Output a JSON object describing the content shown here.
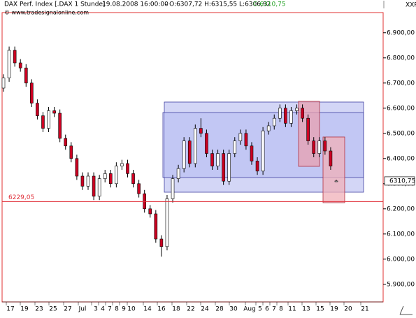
{
  "chart_data": {
    "type": "candlestick",
    "header": {
      "instrument": "DAX Perf. Index [.DAX  1 Stunde]",
      "timestamp": "19.08.2008 16:00:00",
      "ohlc": "- O:6307,72 H:6315,55 L:6306,92",
      "close": "C:6310,75",
      "copyright": "© www.tradesignalonline.com",
      "corner": "XXP"
    },
    "x_labels": [
      "17",
      "19",
      "23",
      "25",
      "27",
      "Jul",
      "3",
      "4",
      "7",
      "8",
      "9",
      "10",
      "14",
      "16",
      "18",
      "22",
      "24",
      "28",
      "30",
      "Aug",
      "5",
      "6",
      "7",
      "8",
      "11",
      "13",
      "15",
      "19",
      "20",
      "21"
    ],
    "open": [
      6680,
      6720,
      6830,
      6780,
      6760,
      6700,
      6620,
      6570,
      6520,
      6590,
      6580,
      6480,
      6450,
      6400,
      6330,
      6290,
      6330,
      6250,
      6320,
      6340,
      6300,
      6370,
      6380,
      6340,
      6300,
      6260,
      6200,
      6180,
      6080,
      6050,
      6240,
      6320,
      6360,
      6470,
      6380,
      6520,
      6500,
      6420,
      6370,
      6420,
      6310,
      6420,
      6470,
      6500,
      6450,
      6390,
      6350,
      6510,
      6530,
      6560,
      6600,
      6540,
      6590,
      6600,
      6560,
      6470,
      6420,
      6470,
      6430,
      6307.72
    ],
    "high": [
      6735,
      6845,
      6845,
      6795,
      6775,
      6715,
      6635,
      6585,
      6605,
      6605,
      6595,
      6495,
      6465,
      6415,
      6345,
      6345,
      6345,
      6335,
      6355,
      6355,
      6385,
      6395,
      6395,
      6355,
      6315,
      6275,
      6215,
      6195,
      6095,
      6255,
      6335,
      6375,
      6485,
      6485,
      6535,
      6560,
      6515,
      6435,
      6435,
      6435,
      6435,
      6485,
      6515,
      6515,
      6465,
      6405,
      6525,
      6545,
      6575,
      6615,
      6615,
      6605,
      6615,
      6615,
      6575,
      6485,
      6485,
      6485,
      6445,
      6315.55
    ],
    "low": [
      6665,
      6705,
      6765,
      6745,
      6685,
      6605,
      6555,
      6505,
      6505,
      6565,
      6465,
      6435,
      6385,
      6315,
      6275,
      6275,
      6235,
      6235,
      6305,
      6285,
      6285,
      6355,
      6325,
      6285,
      6245,
      6185,
      6165,
      6065,
      6010,
      6035,
      6225,
      6305,
      6345,
      6365,
      6365,
      6485,
      6405,
      6355,
      6355,
      6295,
      6295,
      6405,
      6455,
      6435,
      6375,
      6335,
      6335,
      6495,
      6515,
      6545,
      6525,
      6525,
      6575,
      6545,
      6455,
      6405,
      6405,
      6415,
      6355,
      6306.92
    ],
    "close": [
      6720,
      6830,
      6780,
      6760,
      6700,
      6620,
      6570,
      6520,
      6590,
      6580,
      6480,
      6450,
      6400,
      6330,
      6290,
      6330,
      6250,
      6320,
      6340,
      6300,
      6370,
      6380,
      6340,
      6300,
      6260,
      6200,
      6180,
      6080,
      6050,
      6240,
      6320,
      6360,
      6470,
      6380,
      6520,
      6500,
      6420,
      6370,
      6420,
      6310,
      6420,
      6470,
      6500,
      6450,
      6390,
      6350,
      6510,
      6530,
      6560,
      6600,
      6540,
      6590,
      6600,
      6560,
      6470,
      6420,
      6470,
      6430,
      6370,
      6310.75
    ],
    "up_color": "#ffffff",
    "down_color": "#cc0022",
    "ylim": [
      5830,
      6980
    ],
    "yticks": [
      {
        "value": 5900,
        "label": "5.900,00"
      },
      {
        "value": 6000,
        "label": "6.000,00"
      },
      {
        "value": 6100,
        "label": "6.100,00"
      },
      {
        "value": 6200,
        "label": "6.200,00"
      },
      {
        "value": 6300,
        "label": "6.300,00"
      },
      {
        "value": 6400,
        "label": "6.400,00"
      },
      {
        "value": 6500,
        "label": "6.500,00"
      },
      {
        "value": 6600,
        "label": "6.600,00"
      },
      {
        "value": 6700,
        "label": "6.700,00"
      },
      {
        "value": 6800,
        "label": "6.800,00"
      },
      {
        "value": 6900,
        "label": "6.900,00"
      }
    ],
    "hline": {
      "value": 6229.05,
      "label": "6229,05",
      "color": "#e0303a"
    },
    "last_price": {
      "value": 6310.75,
      "label": "6310,75"
    }
  }
}
